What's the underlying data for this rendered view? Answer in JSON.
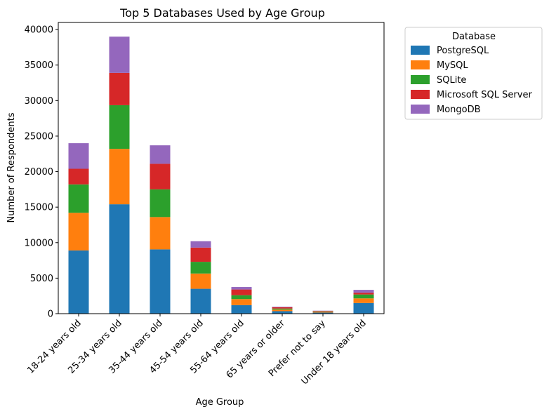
{
  "chart_data": {
    "type": "bar",
    "stacked": true,
    "title": "Top 5 Databases Used by Age Group",
    "xlabel": "Age Group",
    "ylabel": "Number of Respondents",
    "ylim": [
      0,
      41000
    ],
    "yticks": [
      0,
      5000,
      10000,
      15000,
      20000,
      25000,
      30000,
      35000,
      40000
    ],
    "grid": false,
    "legend": {
      "title": "Database",
      "placement": "outside-top-right"
    },
    "categories": [
      "18-24 years old",
      "25-34 years old",
      "35-44 years old",
      "45-54 years old",
      "55-64 years old",
      "65 years or older",
      "Prefer not to say",
      "Under 18 years old"
    ],
    "series": [
      {
        "name": "PostgreSQL",
        "color": "#1f77b4",
        "values": [
          8900,
          15400,
          9050,
          3500,
          1200,
          350,
          150,
          1500
        ]
      },
      {
        "name": "MySQL",
        "color": "#ff7f0e",
        "values": [
          5300,
          7800,
          4550,
          2150,
          850,
          220,
          100,
          650
        ]
      },
      {
        "name": "SQLite",
        "color": "#2ca02c",
        "values": [
          4000,
          6150,
          3900,
          1650,
          550,
          150,
          60,
          550
        ]
      },
      {
        "name": "Microsoft SQL Server",
        "color": "#d62728",
        "values": [
          2200,
          4550,
          3600,
          2000,
          800,
          170,
          70,
          250
        ]
      },
      {
        "name": "MongoDB",
        "color": "#9467bd",
        "values": [
          3600,
          5100,
          2600,
          900,
          350,
          80,
          40,
          400
        ]
      }
    ]
  }
}
